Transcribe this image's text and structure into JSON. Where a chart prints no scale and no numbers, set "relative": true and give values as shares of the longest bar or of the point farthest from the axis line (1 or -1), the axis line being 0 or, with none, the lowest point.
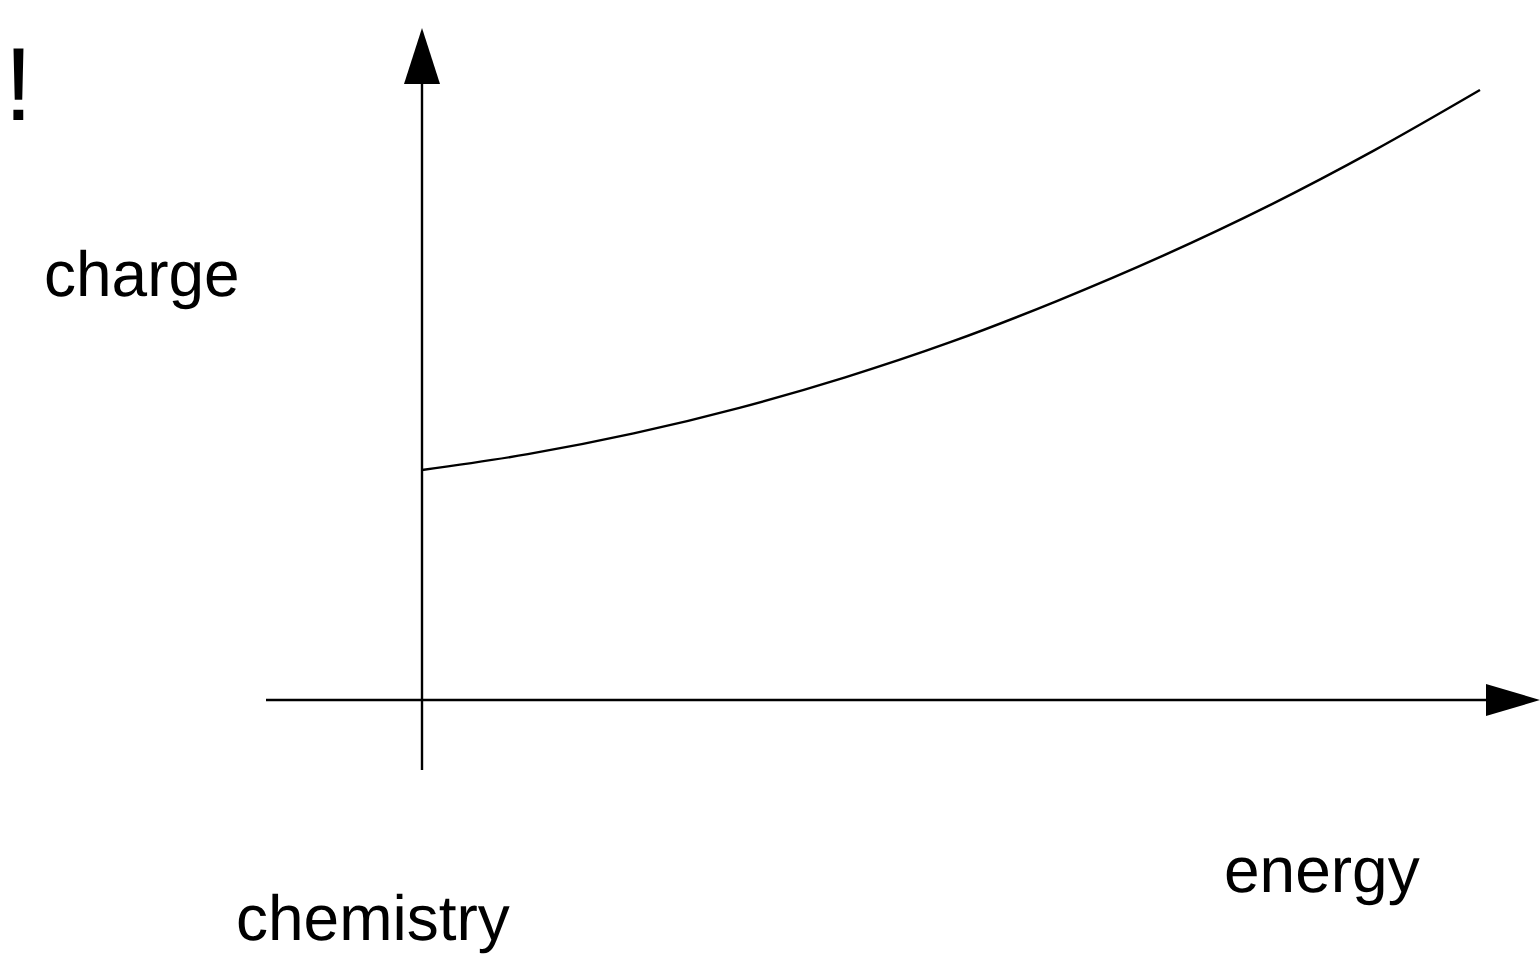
{
  "chart_data": {
    "type": "line",
    "relative": true,
    "ylabel": "charge",
    "xlabel": "energy",
    "annotations": [
      "chemistry",
      "!"
    ],
    "categories": [
      null,
      null,
      null,
      null,
      null,
      null,
      null,
      null,
      null,
      null,
      null
    ],
    "values": [
      0.377,
      0.403,
      0.437,
      0.479,
      0.529,
      0.587,
      0.654,
      0.728,
      0.81,
      0.901,
      1
    ],
    "color": "#000000"
  }
}
